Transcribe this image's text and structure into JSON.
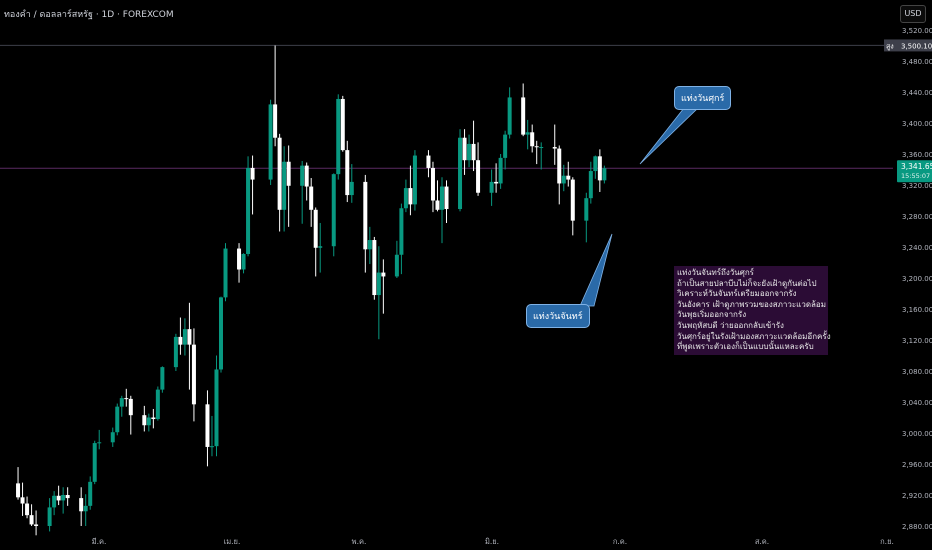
{
  "header": {
    "title": "ทองคำ / ดอลลาร์สหรัฐ · 1D · FOREXCOM",
    "currency": "USD"
  },
  "price_axis": {
    "ticks": [
      "3,520.00",
      "3,480.00",
      "3,440.00",
      "3,400.00",
      "3,360.00",
      "3,320.00",
      "3,280.00",
      "3,240.00",
      "3,200.00",
      "3,160.00",
      "3,120.00",
      "3,080.00",
      "3,040.00",
      "3,000.00",
      "2,960.00",
      "2,920.00",
      "2,880.00"
    ],
    "high_label": "สูง",
    "high_value": "3,500.10",
    "last_price": "3,341.65",
    "countdown": "15:55:07"
  },
  "time_axis": {
    "labels": [
      "มี.ค.",
      "เม.ย.",
      "พ.ค.",
      "มิ.ย.",
      "ก.ค.",
      "ส.ค.",
      "ก.ย."
    ]
  },
  "callouts": {
    "friday": "แท่งวันศุกร์",
    "monday": "แท่งวันจันทร์"
  },
  "note": {
    "lines": [
      "แท่งวันจันทร์ถึงวันศุกร์",
      "ถ้าเป็นสายปลาบีบไม่ก็จะยังเฝ้าดูกันต่อไป",
      "วิเคราะห์วันจันทร์เตรียมออกจากรัง",
      "วันอังคาร เฝ้าดูภาพรวมของสภาวะแวดล้อม",
      "วันพุธเริ่มออกจากรัง",
      "วันพฤหัสบดี ว่ายออกกลับเข้ารัง",
      "วันศุกร์อยู่ในรังเฝ้ามองสภาวะแวดล้อมอีกครั้ง",
      "ที่พูดเพราะตัวเองก็เป็นแบบนั้นแหละครับ"
    ]
  },
  "colors": {
    "up": "#089981",
    "down": "#ffffff",
    "background": "#000000",
    "grid": "#1a1a1a",
    "note_bg": "#2b0c35",
    "callout_bg": "#2a6aa8",
    "high_line": "#3d3f4a",
    "last_line": "#5b2a63"
  },
  "chart_data": {
    "type": "candlestick",
    "symbol": "XAUUSD",
    "interval": "1D",
    "ylim": [
      2870,
      3535
    ],
    "x_range": [
      "2025-02-20",
      "2025-09-06"
    ],
    "grid": false,
    "high": 3500.1,
    "last": 3341.65,
    "candles": [
      {
        "d": "2025-02-24",
        "o": 2935,
        "h": 2956,
        "l": 2914,
        "c": 2917
      },
      {
        "d": "2025-02-25",
        "o": 2917,
        "h": 2936,
        "l": 2893,
        "c": 2909
      },
      {
        "d": "2025-02-26",
        "o": 2909,
        "h": 2918,
        "l": 2890,
        "c": 2894
      },
      {
        "d": "2025-02-27",
        "o": 2894,
        "h": 2908,
        "l": 2880,
        "c": 2882
      },
      {
        "d": "2025-02-28",
        "o": 2882,
        "h": 2900,
        "l": 2868,
        "c": 2880
      },
      {
        "d": "2025-03-03",
        "o": 2880,
        "h": 2916,
        "l": 2873,
        "c": 2904
      },
      {
        "d": "2025-03-04",
        "o": 2904,
        "h": 2925,
        "l": 2894,
        "c": 2919
      },
      {
        "d": "2025-03-05",
        "o": 2919,
        "h": 2932,
        "l": 2907,
        "c": 2913
      },
      {
        "d": "2025-03-06",
        "o": 2913,
        "h": 2930,
        "l": 2896,
        "c": 2920
      },
      {
        "d": "2025-03-07",
        "o": 2920,
        "h": 2930,
        "l": 2906,
        "c": 2916
      },
      {
        "d": "2025-03-10",
        "o": 2916,
        "h": 2930,
        "l": 2880,
        "c": 2899
      },
      {
        "d": "2025-03-11",
        "o": 2899,
        "h": 2921,
        "l": 2880,
        "c": 2906
      },
      {
        "d": "2025-03-12",
        "o": 2906,
        "h": 2944,
        "l": 2901,
        "c": 2937
      },
      {
        "d": "2025-03-13",
        "o": 2937,
        "h": 2990,
        "l": 2934,
        "c": 2987
      },
      {
        "d": "2025-03-14",
        "o": 2987,
        "h": 3004,
        "l": 2979,
        "c": 2988
      },
      {
        "d": "2025-03-17",
        "o": 2988,
        "h": 3007,
        "l": 2982,
        "c": 3001
      },
      {
        "d": "2025-03-18",
        "o": 3001,
        "h": 3038,
        "l": 2997,
        "c": 3034
      },
      {
        "d": "2025-03-19",
        "o": 3034,
        "h": 3048,
        "l": 3021,
        "c": 3045
      },
      {
        "d": "2025-03-20",
        "o": 3045,
        "h": 3057,
        "l": 3034,
        "c": 3044
      },
      {
        "d": "2025-03-21",
        "o": 3044,
        "h": 3048,
        "l": 2998,
        "c": 3023
      },
      {
        "d": "2025-03-24",
        "o": 3023,
        "h": 3035,
        "l": 3002,
        "c": 3010
      },
      {
        "d": "2025-03-25",
        "o": 3010,
        "h": 3025,
        "l": 3002,
        "c": 3020
      },
      {
        "d": "2025-03-26",
        "o": 3020,
        "h": 3031,
        "l": 3006,
        "c": 3018
      },
      {
        "d": "2025-03-27",
        "o": 3018,
        "h": 3060,
        "l": 3016,
        "c": 3056
      },
      {
        "d": "2025-03-28",
        "o": 3056,
        "h": 3086,
        "l": 3052,
        "c": 3085
      },
      {
        "d": "2025-03-31",
        "o": 3085,
        "h": 3128,
        "l": 3080,
        "c": 3124
      },
      {
        "d": "2025-04-01",
        "o": 3124,
        "h": 3149,
        "l": 3101,
        "c": 3114
      },
      {
        "d": "2025-04-02",
        "o": 3114,
        "h": 3148,
        "l": 3100,
        "c": 3134
      },
      {
        "d": "2025-04-03",
        "o": 3134,
        "h": 3168,
        "l": 3056,
        "c": 3114
      },
      {
        "d": "2025-04-04",
        "o": 3114,
        "h": 3135,
        "l": 3015,
        "c": 3037
      },
      {
        "d": "2025-04-07",
        "o": 3037,
        "h": 3055,
        "l": 2957,
        "c": 2982
      },
      {
        "d": "2025-04-08",
        "o": 2982,
        "h": 3022,
        "l": 2970,
        "c": 2983
      },
      {
        "d": "2025-04-09",
        "o": 2983,
        "h": 3100,
        "l": 2970,
        "c": 3082
      },
      {
        "d": "2025-04-10",
        "o": 3082,
        "h": 3176,
        "l": 3078,
        "c": 3175
      },
      {
        "d": "2025-04-11",
        "o": 3175,
        "h": 3245,
        "l": 3170,
        "c": 3238
      },
      {
        "d": "2025-04-14",
        "o": 3238,
        "h": 3245,
        "l": 3194,
        "c": 3211
      },
      {
        "d": "2025-04-15",
        "o": 3211,
        "h": 3232,
        "l": 3206,
        "c": 3231
      },
      {
        "d": "2025-04-16",
        "o": 3231,
        "h": 3357,
        "l": 3228,
        "c": 3342
      },
      {
        "d": "2025-04-17",
        "o": 3342,
        "h": 3358,
        "l": 3282,
        "c": 3327
      },
      {
        "d": "2025-04-21",
        "o": 3327,
        "h": 3430,
        "l": 3320,
        "c": 3424
      },
      {
        "d": "2025-04-22",
        "o": 3424,
        "h": 3500,
        "l": 3370,
        "c": 3381
      },
      {
        "d": "2025-04-23",
        "o": 3381,
        "h": 3386,
        "l": 3260,
        "c": 3288
      },
      {
        "d": "2025-04-24",
        "o": 3288,
        "h": 3370,
        "l": 3260,
        "c": 3350
      },
      {
        "d": "2025-04-25",
        "o": 3350,
        "h": 3371,
        "l": 3266,
        "c": 3319
      },
      {
        "d": "2025-04-28",
        "o": 3319,
        "h": 3351,
        "l": 3270,
        "c": 3345
      },
      {
        "d": "2025-04-29",
        "o": 3345,
        "h": 3349,
        "l": 3300,
        "c": 3318
      },
      {
        "d": "2025-04-30",
        "o": 3318,
        "h": 3329,
        "l": 3266,
        "c": 3288
      },
      {
        "d": "2025-05-01",
        "o": 3288,
        "h": 3291,
        "l": 3202,
        "c": 3239
      },
      {
        "d": "2025-05-02",
        "o": 3239,
        "h": 3271,
        "l": 3207,
        "c": 3241
      },
      {
        "d": "2025-05-05",
        "o": 3241,
        "h": 3335,
        "l": 3228,
        "c": 3334
      },
      {
        "d": "2025-05-06",
        "o": 3334,
        "h": 3437,
        "l": 3327,
        "c": 3431
      },
      {
        "d": "2025-05-07",
        "o": 3431,
        "h": 3435,
        "l": 3363,
        "c": 3365
      },
      {
        "d": "2025-05-08",
        "o": 3365,
        "h": 3377,
        "l": 3298,
        "c": 3307
      },
      {
        "d": "2025-05-09",
        "o": 3307,
        "h": 3347,
        "l": 3297,
        "c": 3324
      },
      {
        "d": "2025-05-12",
        "o": 3324,
        "h": 3333,
        "l": 3207,
        "c": 3237
      },
      {
        "d": "2025-05-13",
        "o": 3237,
        "h": 3266,
        "l": 3218,
        "c": 3249
      },
      {
        "d": "2025-05-14",
        "o": 3249,
        "h": 3253,
        "l": 3172,
        "c": 3178
      },
      {
        "d": "2025-05-15",
        "o": 3178,
        "h": 3241,
        "l": 3121,
        "c": 3207
      },
      {
        "d": "2025-05-16",
        "o": 3207,
        "h": 3224,
        "l": 3154,
        "c": 3202
      },
      {
        "d": "2025-05-19",
        "o": 3202,
        "h": 3248,
        "l": 3200,
        "c": 3230
      },
      {
        "d": "2025-05-20",
        "o": 3230,
        "h": 3296,
        "l": 3205,
        "c": 3290
      },
      {
        "d": "2025-05-21",
        "o": 3290,
        "h": 3327,
        "l": 3285,
        "c": 3316
      },
      {
        "d": "2025-05-22",
        "o": 3316,
        "h": 3345,
        "l": 3281,
        "c": 3295
      },
      {
        "d": "2025-05-23",
        "o": 3295,
        "h": 3365,
        "l": 3287,
        "c": 3358
      },
      {
        "d": "2025-05-26",
        "o": 3358,
        "h": 3365,
        "l": 3330,
        "c": 3342
      },
      {
        "d": "2025-05-27",
        "o": 3342,
        "h": 3350,
        "l": 3285,
        "c": 3300
      },
      {
        "d": "2025-05-28",
        "o": 3300,
        "h": 3326,
        "l": 3286,
        "c": 3288
      },
      {
        "d": "2025-05-29",
        "o": 3288,
        "h": 3330,
        "l": 3245,
        "c": 3318
      },
      {
        "d": "2025-05-30",
        "o": 3318,
        "h": 3326,
        "l": 3271,
        "c": 3289
      },
      {
        "d": "2025-06-02",
        "o": 3289,
        "h": 3392,
        "l": 3286,
        "c": 3381
      },
      {
        "d": "2025-06-03",
        "o": 3381,
        "h": 3392,
        "l": 3333,
        "c": 3352
      },
      {
        "d": "2025-06-04",
        "o": 3352,
        "h": 3385,
        "l": 3343,
        "c": 3373
      },
      {
        "d": "2025-06-05",
        "o": 3373,
        "h": 3403,
        "l": 3338,
        "c": 3352
      },
      {
        "d": "2025-06-06",
        "o": 3352,
        "h": 3375,
        "l": 3306,
        "c": 3310
      },
      {
        "d": "2025-06-09",
        "o": 3310,
        "h": 3340,
        "l": 3293,
        "c": 3324
      },
      {
        "d": "2025-06-10",
        "o": 3324,
        "h": 3348,
        "l": 3310,
        "c": 3322
      },
      {
        "d": "2025-06-11",
        "o": 3322,
        "h": 3360,
        "l": 3315,
        "c": 3355
      },
      {
        "d": "2025-06-12",
        "o": 3355,
        "h": 3390,
        "l": 3340,
        "c": 3385
      },
      {
        "d": "2025-06-13",
        "o": 3385,
        "h": 3446,
        "l": 3380,
        "c": 3433
      },
      {
        "d": "2025-06-16",
        "o": 3433,
        "h": 3451,
        "l": 3383,
        "c": 3385
      },
      {
        "d": "2025-06-17",
        "o": 3385,
        "h": 3404,
        "l": 3366,
        "c": 3388
      },
      {
        "d": "2025-06-18",
        "o": 3388,
        "h": 3398,
        "l": 3362,
        "c": 3370
      },
      {
        "d": "2025-06-19",
        "o": 3370,
        "h": 3377,
        "l": 3347,
        "c": 3369
      },
      {
        "d": "2025-06-20",
        "o": 3369,
        "h": 3375,
        "l": 3340,
        "c": 3369
      },
      {
        "d": "2025-06-23",
        "o": 3369,
        "h": 3398,
        "l": 3346,
        "c": 3367
      },
      {
        "d": "2025-06-24",
        "o": 3367,
        "h": 3371,
        "l": 3295,
        "c": 3322
      },
      {
        "d": "2025-06-25",
        "o": 3322,
        "h": 3346,
        "l": 3312,
        "c": 3332
      },
      {
        "d": "2025-06-26",
        "o": 3332,
        "h": 3350,
        "l": 3318,
        "c": 3327
      },
      {
        "d": "2025-06-27",
        "o": 3327,
        "h": 3330,
        "l": 3255,
        "c": 3274
      },
      {
        "d": "2025-06-30",
        "o": 3274,
        "h": 3310,
        "l": 3246,
        "c": 3303
      },
      {
        "d": "2025-07-01",
        "o": 3303,
        "h": 3350,
        "l": 3296,
        "c": 3338
      },
      {
        "d": "2025-07-02",
        "o": 3338,
        "h": 3358,
        "l": 3328,
        "c": 3357
      },
      {
        "d": "2025-07-03",
        "o": 3357,
        "h": 3366,
        "l": 3311,
        "c": 3326
      },
      {
        "d": "2025-07-04",
        "o": 3326,
        "h": 3345,
        "l": 3322,
        "c": 3341.65
      }
    ]
  }
}
